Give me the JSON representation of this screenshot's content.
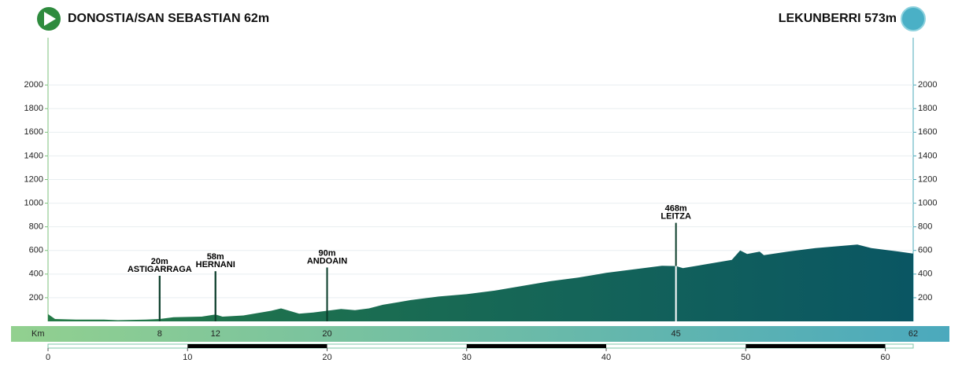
{
  "chart_data": {
    "type": "area",
    "start": "DONOSTIA/SAN SEBASTIAN 62m",
    "finish": "LEKUNBERRI 573m",
    "x": [
      0,
      0.5,
      2,
      4,
      5,
      7,
      8,
      9,
      11,
      12,
      12.5,
      14,
      15,
      16,
      16.7,
      17,
      18,
      19,
      20,
      21,
      22,
      23,
      24,
      26,
      28,
      30,
      32,
      34,
      36,
      38,
      40,
      42,
      44,
      45,
      45.5,
      46,
      47,
      49,
      49.6,
      50.1,
      51,
      51.3,
      53,
      55,
      57,
      58,
      59,
      61,
      62
    ],
    "values": [
      62,
      20,
      15,
      15,
      10,
      15,
      20,
      35,
      40,
      58,
      40,
      50,
      70,
      90,
      110,
      100,
      65,
      75,
      90,
      105,
      95,
      110,
      140,
      180,
      210,
      230,
      260,
      300,
      340,
      370,
      410,
      440,
      470,
      468,
      450,
      460,
      480,
      520,
      600,
      570,
      590,
      560,
      590,
      620,
      640,
      650,
      620,
      590,
      573
    ],
    "colors": [
      "#247a47",
      "#0a5663"
    ],
    "xlim": [
      0,
      62
    ],
    "xticks": [
      0,
      10,
      20,
      30,
      40,
      50,
      60
    ],
    "ylim": [
      0,
      2400
    ],
    "yticks": [
      200,
      400,
      600,
      800,
      1000,
      1200,
      1400,
      1600,
      1800,
      2000
    ],
    "grid": true,
    "waypoints": [
      {
        "x": 8,
        "value": 20,
        "value_label": "20m",
        "name": "ASTIGARRAGA"
      },
      {
        "x": 12,
        "value": 58,
        "value_label": "58m",
        "name": "HERNANI"
      },
      {
        "x": 20,
        "value": 90,
        "value_label": "90m",
        "name": "ANDOAIN"
      },
      {
        "x": 45,
        "value": 468,
        "value_label": "468m",
        "name": "LEITZA"
      }
    ],
    "km_label": "Km",
    "km_markers": [
      8,
      12,
      20,
      45,
      62
    ],
    "km_bar_colors": [
      "#92d08f",
      "#4ba9bd"
    ]
  }
}
